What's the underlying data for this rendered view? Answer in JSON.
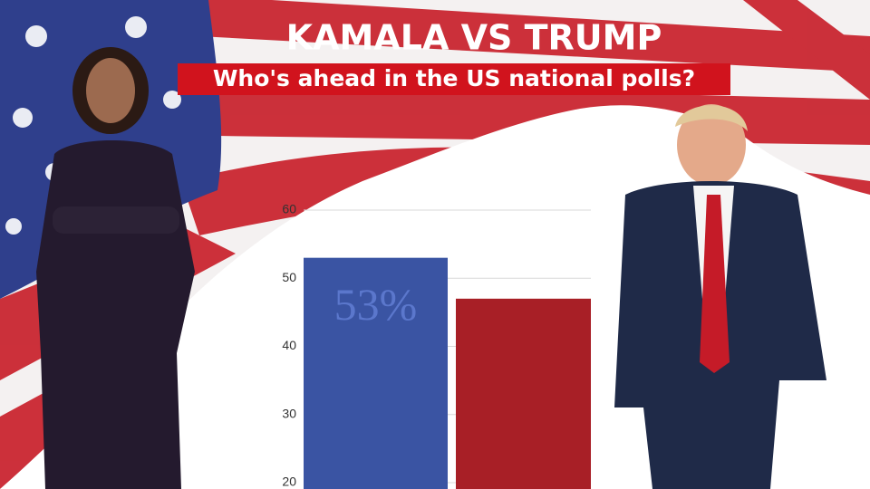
{
  "chart_data": {
    "type": "bar",
    "title": "KAMALA VS TRUMP",
    "subtitle": "Who's ahead in the US national polls?",
    "categories": [
      null,
      null
    ],
    "values": [
      53,
      47
    ],
    "value_labels": [
      "53%",
      null
    ],
    "colors": [
      "#3a54a3",
      "#a81f26"
    ],
    "ylim": [
      20,
      60
    ],
    "yticks": [
      20,
      30,
      40,
      50,
      60
    ],
    "grid": true
  }
}
